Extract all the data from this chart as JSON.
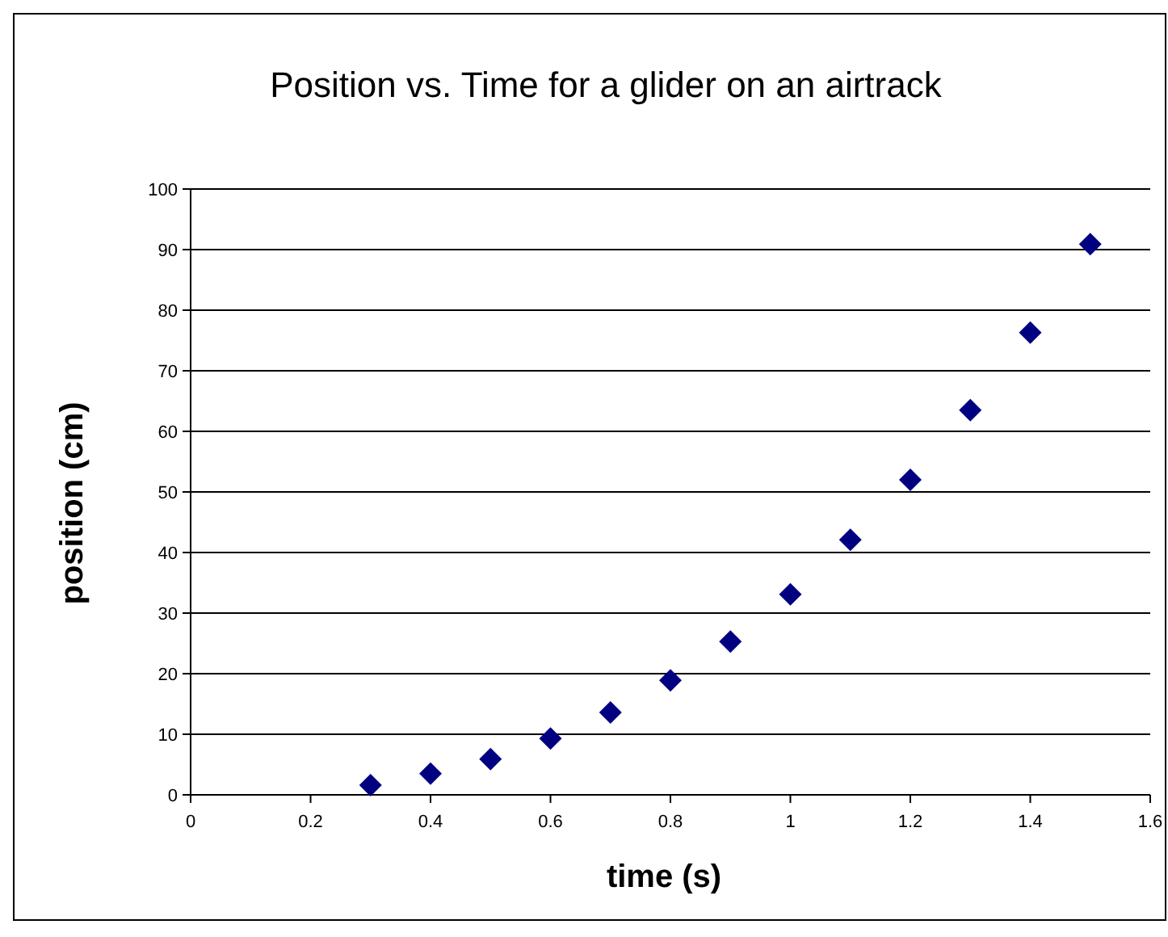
{
  "chart_data": {
    "type": "scatter",
    "title": "Position vs. Time for a glider on an airtrack",
    "xlabel": "time (s)",
    "ylabel": "position (cm)",
    "x": [
      0.3,
      0.4,
      0.5,
      0.6,
      0.7,
      0.8,
      0.9,
      1.0,
      1.1,
      1.2,
      1.3,
      1.4,
      1.5
    ],
    "series": [
      {
        "color": "#000080",
        "values": [
          1.6,
          3.5,
          5.9,
          9.3,
          13.6,
          18.9,
          25.3,
          33.1,
          42.1,
          52,
          63.5,
          76.3,
          90.9
        ]
      }
    ],
    "xlim": [
      0,
      1.6
    ],
    "xticks": [
      0,
      0.2,
      0.4,
      0.6,
      0.8,
      1,
      1.2,
      1.4,
      1.6
    ],
    "ylim": [
      0,
      100
    ],
    "yticks": [
      0,
      10,
      20,
      30,
      40,
      50,
      60,
      70,
      80,
      90,
      100
    ],
    "grid": "y",
    "marker": "diamond"
  }
}
